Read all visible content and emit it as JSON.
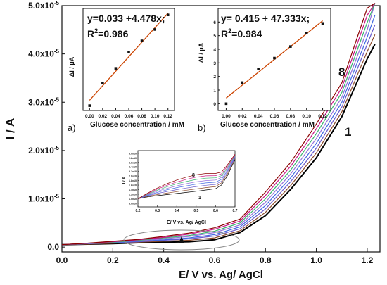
{
  "chart_data": [
    {
      "id": "main",
      "type": "line",
      "xlabel": "E/ V vs. Ag/ AgCl",
      "ylabel": "I / A",
      "xlim": [
        0.0,
        1.25
      ],
      "ylim": [
        -0.1,
        5.0
      ],
      "y_exponent_label": "x10",
      "y_exponent_value": "-5",
      "x_ticks": [
        "0.0",
        "0.2",
        "0.4",
        "0.6",
        "0.8",
        "1.0",
        "1.2"
      ],
      "x_tick_values": [
        0.0,
        0.2,
        0.4,
        0.6,
        0.8,
        1.0,
        1.2
      ],
      "y_ticks": [
        "0.0",
        "1.0",
        "2.0",
        "3.0",
        "4.0",
        "5.0"
      ],
      "y_tick_values": [
        0.0,
        1.0,
        2.0,
        3.0,
        4.0,
        5.0
      ],
      "curve_labels": [
        "8",
        "1"
      ],
      "x": [
        0.0,
        0.1,
        0.2,
        0.3,
        0.4,
        0.5,
        0.6,
        0.7,
        0.8,
        0.9,
        1.0,
        1.1,
        1.2,
        1.23
      ],
      "series": [
        {
          "values": [
            0.05,
            0.06,
            0.07,
            0.09,
            0.1,
            0.11,
            0.15,
            0.3,
            0.65,
            1.2,
            1.85,
            2.7,
            3.9,
            4.2
          ]
        },
        {
          "values": [
            0.05,
            0.06,
            0.08,
            0.1,
            0.12,
            0.14,
            0.19,
            0.34,
            0.72,
            1.28,
            1.95,
            2.8,
            4.05,
            4.4
          ]
        },
        {
          "values": [
            0.05,
            0.07,
            0.09,
            0.11,
            0.14,
            0.17,
            0.23,
            0.38,
            0.79,
            1.36,
            2.05,
            2.9,
            4.2,
            4.6
          ]
        },
        {
          "values": [
            0.05,
            0.07,
            0.09,
            0.12,
            0.15,
            0.19,
            0.26,
            0.42,
            0.86,
            1.44,
            2.15,
            3.0,
            4.35,
            4.8
          ]
        },
        {
          "values": [
            0.05,
            0.07,
            0.1,
            0.13,
            0.17,
            0.22,
            0.3,
            0.46,
            0.93,
            1.52,
            2.25,
            3.1,
            4.5,
            5.05
          ]
        },
        {
          "values": [
            0.05,
            0.08,
            0.1,
            0.14,
            0.19,
            0.24,
            0.33,
            0.5,
            1.0,
            1.6,
            2.35,
            3.2,
            4.65,
            5.3
          ]
        },
        {
          "values": [
            0.05,
            0.08,
            0.11,
            0.15,
            0.2,
            0.27,
            0.37,
            0.54,
            1.07,
            1.68,
            2.45,
            3.3,
            4.8,
            5.6
          ]
        },
        {
          "values": [
            0.05,
            0.08,
            0.12,
            0.16,
            0.22,
            0.29,
            0.4,
            0.58,
            1.14,
            1.76,
            2.55,
            3.4,
            4.95,
            6.0
          ]
        }
      ]
    },
    {
      "id": "inset-a",
      "type": "scatter",
      "panel_label": "a)",
      "equation": "y=0.033 +4.478x;",
      "r2_prefix": "R",
      "r2_sup": "2",
      "r2_value": "=0.986",
      "xlabel": "Glucose concentration / mM",
      "ylabel": "ΔI / μA",
      "xlim": [
        -0.01,
        0.13
      ],
      "ylim": [
        -0.03,
        0.6
      ],
      "x_ticks": [
        "0.00",
        "0.02",
        "0.04",
        "0.06",
        "0.08",
        "0.10",
        "0.12"
      ],
      "x_tick_values": [
        0.0,
        0.02,
        0.04,
        0.06,
        0.08,
        0.1,
        0.12
      ],
      "x": [
        0.0,
        0.02,
        0.04,
        0.06,
        0.08,
        0.1,
        0.12
      ],
      "y": [
        0.0,
        0.14,
        0.23,
        0.33,
        0.4,
        0.47,
        0.56
      ],
      "fit": {
        "slope": 4.478,
        "intercept": 0.033
      }
    },
    {
      "id": "inset-b",
      "type": "scatter",
      "panel_label": "b)",
      "equation": "y= 0.415 + 47.333x;",
      "r2_prefix": "R",
      "r2_sup": "2",
      "r2_value": "=0.984",
      "xlabel": "Glucose concentration / mM",
      "ylabel": "ΔI / μA",
      "xlim": [
        -0.01,
        0.13
      ],
      "ylim": [
        -0.5,
        7.0
      ],
      "x_ticks": [
        "0.00",
        "0.02",
        "0.04",
        "0.06",
        "0.08",
        "0.10",
        "0.12"
      ],
      "x_tick_values": [
        0.0,
        0.02,
        0.04,
        0.06,
        0.08,
        0.1,
        0.12
      ],
      "y_ticks": [
        "0",
        "1",
        "2",
        "3",
        "4",
        "5",
        "6"
      ],
      "y_tick_values": [
        0,
        1,
        2,
        3,
        4,
        5,
        6
      ],
      "x": [
        0.0,
        0.02,
        0.04,
        0.06,
        0.08,
        0.1,
        0.12
      ],
      "y": [
        0.0,
        1.55,
        2.55,
        3.35,
        4.2,
        5.2,
        5.9
      ],
      "fit": {
        "slope": 47.333,
        "intercept": 0.415
      }
    },
    {
      "id": "inset-c",
      "type": "line",
      "xlabel": "E/ V vs. Ag/ AgCl",
      "ylabel": "I / A",
      "xlim": [
        0.2,
        0.7
      ],
      "ylim": [
        0.0,
        3.1
      ],
      "x_ticks": [
        "0.2",
        "0.3",
        "0.4",
        "0.5",
        "0.6",
        "0.7"
      ],
      "x_tick_values": [
        0.2,
        0.3,
        0.4,
        0.5,
        0.6,
        0.7
      ],
      "y_ticks": [
        "8.0x10",
        "1.0x10",
        "1.2x10",
        "1.4x10",
        "1.6x10",
        "1.8x10",
        "2.0x10",
        "2.2x10",
        "2.4x10",
        "2.6x10",
        "2.8x10",
        "3.0x10"
      ],
      "y_tick_values": [
        0.2,
        0.45,
        0.7,
        0.95,
        1.2,
        1.45,
        1.7,
        1.95,
        2.2,
        2.45,
        2.7,
        2.95
      ],
      "curve_labels": [
        "8",
        "1"
      ],
      "x": [
        0.2,
        0.25,
        0.3,
        0.35,
        0.4,
        0.45,
        0.5,
        0.55,
        0.6,
        0.63,
        0.66,
        0.7
      ],
      "series": [
        {
          "values": [
            0.45,
            0.55,
            0.62,
            0.68,
            0.74,
            0.8,
            0.86,
            0.93,
            1.0,
            1.2,
            1.7,
            2.6
          ]
        },
        {
          "values": [
            0.45,
            0.58,
            0.68,
            0.76,
            0.84,
            0.92,
            0.99,
            1.06,
            1.12,
            1.32,
            1.8,
            2.65
          ]
        },
        {
          "values": [
            0.45,
            0.61,
            0.74,
            0.85,
            0.95,
            1.04,
            1.12,
            1.19,
            1.24,
            1.42,
            1.9,
            2.7
          ]
        },
        {
          "values": [
            0.45,
            0.64,
            0.8,
            0.94,
            1.06,
            1.16,
            1.25,
            1.32,
            1.36,
            1.52,
            1.98,
            2.74
          ]
        },
        {
          "values": [
            0.45,
            0.67,
            0.86,
            1.02,
            1.16,
            1.28,
            1.38,
            1.45,
            1.48,
            1.62,
            2.06,
            2.78
          ]
        },
        {
          "values": [
            0.45,
            0.7,
            0.92,
            1.11,
            1.27,
            1.4,
            1.51,
            1.58,
            1.6,
            1.72,
            2.14,
            2.82
          ]
        },
        {
          "values": [
            0.45,
            0.73,
            0.98,
            1.19,
            1.37,
            1.52,
            1.64,
            1.71,
            1.72,
            1.82,
            2.22,
            2.86
          ]
        },
        {
          "values": [
            0.45,
            0.76,
            1.04,
            1.28,
            1.48,
            1.64,
            1.77,
            1.84,
            1.84,
            1.92,
            2.3,
            2.9
          ]
        }
      ]
    }
  ],
  "colors": {
    "series": [
      "#000000",
      "#8b4a2b",
      "#6a5acd",
      "#4169e1",
      "#9370db",
      "#3cb371",
      "#c71585",
      "#8b0000"
    ],
    "fit": "#cc4400",
    "axis": "#111111",
    "ellipse": "#888888"
  }
}
